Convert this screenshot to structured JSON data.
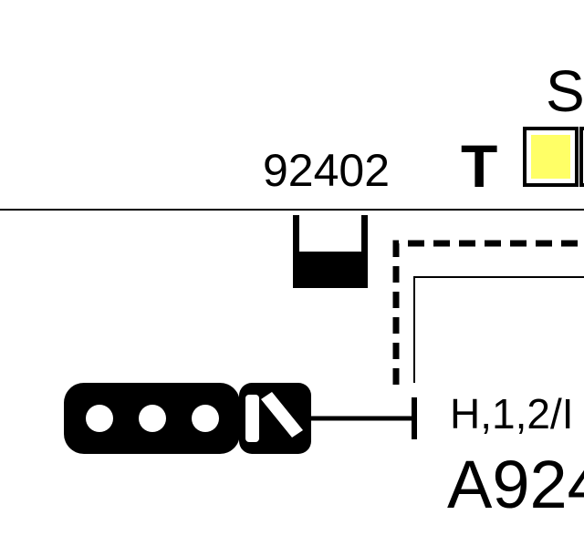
{
  "labels": {
    "top_right_partial": "S",
    "track_marker": "T",
    "block_id": "92402",
    "aspect_text": "H,1,2/I",
    "signal_id": "A924"
  },
  "colors": {
    "line": "#000000",
    "indicator_fill": "#ffff66",
    "background": "#ffffff"
  },
  "icons": {
    "signal_head": "three-lamp-signal-icon",
    "route_indicator": "diagonal-route-indicator-icon",
    "buffer_stop": "buffer-stop-icon",
    "track_circuit_indicator": "yellow-square-icon"
  }
}
